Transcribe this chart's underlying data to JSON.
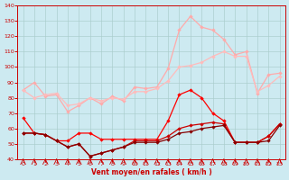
{
  "x": [
    0,
    1,
    2,
    3,
    4,
    5,
    6,
    7,
    8,
    9,
    10,
    11,
    12,
    13,
    14,
    15,
    16,
    17,
    18,
    19,
    20,
    21,
    22,
    23
  ],
  "rafales_peak": [
    85,
    90,
    81,
    82,
    71,
    75,
    80,
    76,
    81,
    78,
    87,
    86,
    87,
    99,
    124,
    133,
    126,
    124,
    118,
    108,
    110,
    83,
    95,
    96
  ],
  "rafales_trend": [
    85,
    80,
    82,
    83,
    75,
    76,
    80,
    78,
    80,
    79,
    84,
    84,
    86,
    91,
    100,
    101,
    103,
    107,
    110,
    107,
    107,
    84,
    88,
    94
  ],
  "vent_high": [
    67,
    57,
    56,
    52,
    52,
    57,
    57,
    53,
    53,
    53,
    53,
    53,
    53,
    65,
    82,
    85,
    80,
    70,
    65,
    51,
    51,
    51,
    55,
    63
  ],
  "vent_mid": [
    57,
    57,
    56,
    52,
    48,
    50,
    42,
    44,
    46,
    48,
    52,
    52,
    52,
    55,
    60,
    62,
    63,
    64,
    63,
    51,
    51,
    51,
    55,
    63
  ],
  "vent_low": [
    57,
    57,
    56,
    52,
    48,
    50,
    42,
    44,
    46,
    48,
    51,
    51,
    51,
    53,
    57,
    58,
    60,
    61,
    62,
    51,
    51,
    51,
    52,
    62
  ],
  "bg_color": "#cdeaf1",
  "grid_color": "#aacccc",
  "c_peak": "#ffaaaa",
  "c_trend": "#ffbbbb",
  "c_high": "#ff0000",
  "c_mid": "#cc0000",
  "c_low": "#880000",
  "xlabel": "Vent moyen/en rafales ( km/h )",
  "ylim": [
    40,
    140
  ],
  "yticks": [
    40,
    50,
    60,
    70,
    80,
    90,
    100,
    110,
    120,
    130,
    140
  ],
  "xticks": [
    0,
    1,
    2,
    3,
    4,
    5,
    6,
    7,
    8,
    9,
    10,
    11,
    12,
    13,
    14,
    15,
    16,
    17,
    18,
    19,
    20,
    21,
    22,
    23
  ]
}
